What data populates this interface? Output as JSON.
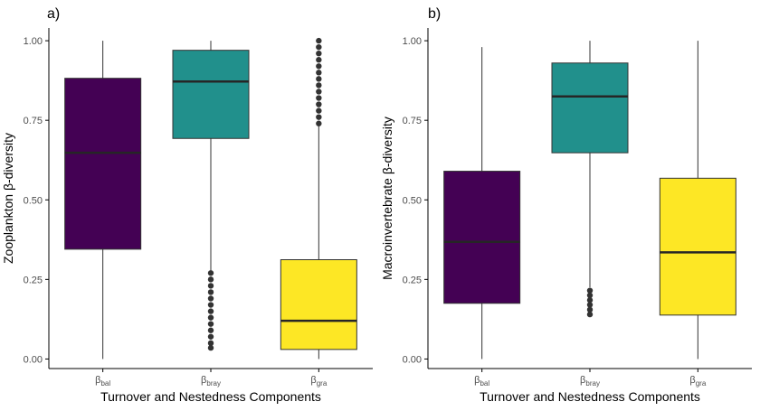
{
  "chart_data": [
    {
      "type": "boxplot",
      "panel_label": "a)",
      "xlabel": "Turnover and Nestedness Components",
      "ylabel": "Zooplankton β-diversity",
      "ylim": [
        -0.03,
        1.04
      ],
      "yticks": [
        0.0,
        0.25,
        0.5,
        0.75,
        1.0
      ],
      "ytick_labels": [
        "0.00",
        "0.25",
        "0.50",
        "0.75",
        "1.00"
      ],
      "grid": false,
      "categories": [
        {
          "symbol": "β",
          "sub": "bal",
          "color": "#440154",
          "whisker_low": 0.0,
          "q1": 0.345,
          "median": 0.648,
          "q3": 0.882,
          "whisker_high": 1.0,
          "outliers": []
        },
        {
          "symbol": "β",
          "sub": "bray",
          "color": "#21908C",
          "whisker_low": 0.275,
          "q1": 0.693,
          "median": 0.872,
          "q3": 0.97,
          "whisker_high": 1.0,
          "outliers": [
            0.035,
            0.05,
            0.07,
            0.09,
            0.11,
            0.13,
            0.15,
            0.17,
            0.19,
            0.21,
            0.23,
            0.25,
            0.27
          ]
        },
        {
          "symbol": "β",
          "sub": "gra",
          "color": "#FDE725",
          "whisker_low": 0.0,
          "q1": 0.03,
          "median": 0.12,
          "q3": 0.312,
          "whisker_high": 0.735,
          "outliers": [
            0.74,
            0.76,
            0.78,
            0.8,
            0.82,
            0.84,
            0.86,
            0.88,
            0.9,
            0.92,
            0.94,
            0.96,
            0.98,
            1.0
          ]
        }
      ]
    },
    {
      "type": "boxplot",
      "panel_label": "b)",
      "xlabel": "Turnover and Nestedness Components",
      "ylabel": "Macroinvertebrate β-diversity",
      "ylim": [
        -0.03,
        1.04
      ],
      "yticks": [
        0.0,
        0.25,
        0.5,
        0.75,
        1.0
      ],
      "ytick_labels": [
        "0.00",
        "0.25",
        "0.50",
        "0.75",
        "1.00"
      ],
      "grid": false,
      "categories": [
        {
          "symbol": "β",
          "sub": "bal",
          "color": "#440154",
          "whisker_low": 0.0,
          "q1": 0.175,
          "median": 0.368,
          "q3": 0.59,
          "whisker_high": 0.98,
          "outliers": []
        },
        {
          "symbol": "β",
          "sub": "bray",
          "color": "#21908C",
          "whisker_low": 0.225,
          "q1": 0.648,
          "median": 0.825,
          "q3": 0.93,
          "whisker_high": 1.0,
          "outliers": [
            0.14,
            0.155,
            0.17,
            0.185,
            0.2,
            0.215
          ]
        },
        {
          "symbol": "β",
          "sub": "gra",
          "color": "#FDE725",
          "whisker_low": 0.0,
          "q1": 0.138,
          "median": 0.335,
          "q3": 0.568,
          "whisker_high": 1.0,
          "outliers": []
        }
      ]
    }
  ],
  "style": {
    "axis_color": "#000000",
    "line_color": "#333333",
    "median_color": "#262626"
  }
}
